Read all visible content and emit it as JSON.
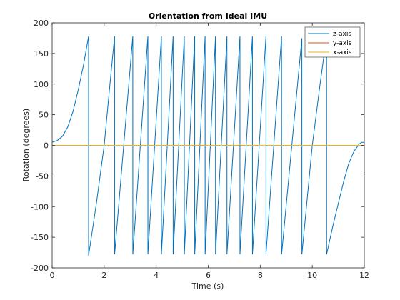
{
  "chart_data": {
    "type": "line",
    "title": "Orientation from Ideal IMU",
    "xlabel": "Time (s)",
    "ylabel": "Rotation (degrees)",
    "xlim": [
      0,
      12
    ],
    "ylim": [
      -200,
      200
    ],
    "xticks": [
      "0",
      "2",
      "4",
      "6",
      "8",
      "10",
      "12"
    ],
    "yticks": [
      "-200",
      "-150",
      "-100",
      "-50",
      "0",
      "50",
      "100",
      "150",
      "200"
    ],
    "grid": false,
    "legend_position": "top-right",
    "series": [
      {
        "name": "z-axis",
        "color": "#0072BD",
        "points": [
          [
            0,
            5
          ],
          [
            0.2,
            8
          ],
          [
            0.4,
            15
          ],
          [
            0.6,
            30
          ],
          [
            0.8,
            55
          ],
          [
            1.0,
            90
          ],
          [
            1.2,
            130
          ],
          [
            1.4,
            178
          ],
          [
            1.401,
            -180
          ],
          [
            1.7,
            -95
          ],
          [
            2.0,
            0
          ],
          [
            2.2,
            90
          ],
          [
            2.4,
            178
          ],
          [
            2.401,
            -178
          ],
          [
            3.1,
            178
          ],
          [
            3.101,
            -178
          ],
          [
            3.68,
            178
          ],
          [
            3.681,
            -178
          ],
          [
            4.2,
            178
          ],
          [
            4.201,
            -178
          ],
          [
            4.65,
            178
          ],
          [
            4.651,
            -178
          ],
          [
            5.08,
            178
          ],
          [
            5.081,
            -178
          ],
          [
            5.48,
            178
          ],
          [
            5.481,
            -178
          ],
          [
            5.88,
            178
          ],
          [
            5.881,
            -178
          ],
          [
            6.28,
            178
          ],
          [
            6.281,
            -178
          ],
          [
            6.72,
            178
          ],
          [
            6.721,
            -178
          ],
          [
            7.22,
            178
          ],
          [
            7.221,
            -178
          ],
          [
            7.7,
            178
          ],
          [
            7.701,
            -178
          ],
          [
            8.22,
            178
          ],
          [
            8.221,
            -178
          ],
          [
            8.82,
            178
          ],
          [
            8.821,
            -178
          ],
          [
            9.6,
            175
          ],
          [
            9.601,
            -178
          ],
          [
            10.0,
            0
          ],
          [
            10.3,
            100
          ],
          [
            10.55,
            178
          ],
          [
            10.551,
            -178
          ],
          [
            10.8,
            -130
          ],
          [
            11.0,
            -95
          ],
          [
            11.2,
            -60
          ],
          [
            11.4,
            -30
          ],
          [
            11.6,
            -10
          ],
          [
            11.8,
            2
          ],
          [
            11.9,
            5
          ],
          [
            12.0,
            5
          ]
        ]
      },
      {
        "name": "y-axis",
        "color": "#D95319",
        "points": [
          [
            0,
            0
          ],
          [
            12,
            0
          ]
        ]
      },
      {
        "name": "x-axis",
        "color": "#EDB120",
        "points": [
          [
            0,
            0
          ],
          [
            12,
            0
          ]
        ]
      }
    ]
  }
}
